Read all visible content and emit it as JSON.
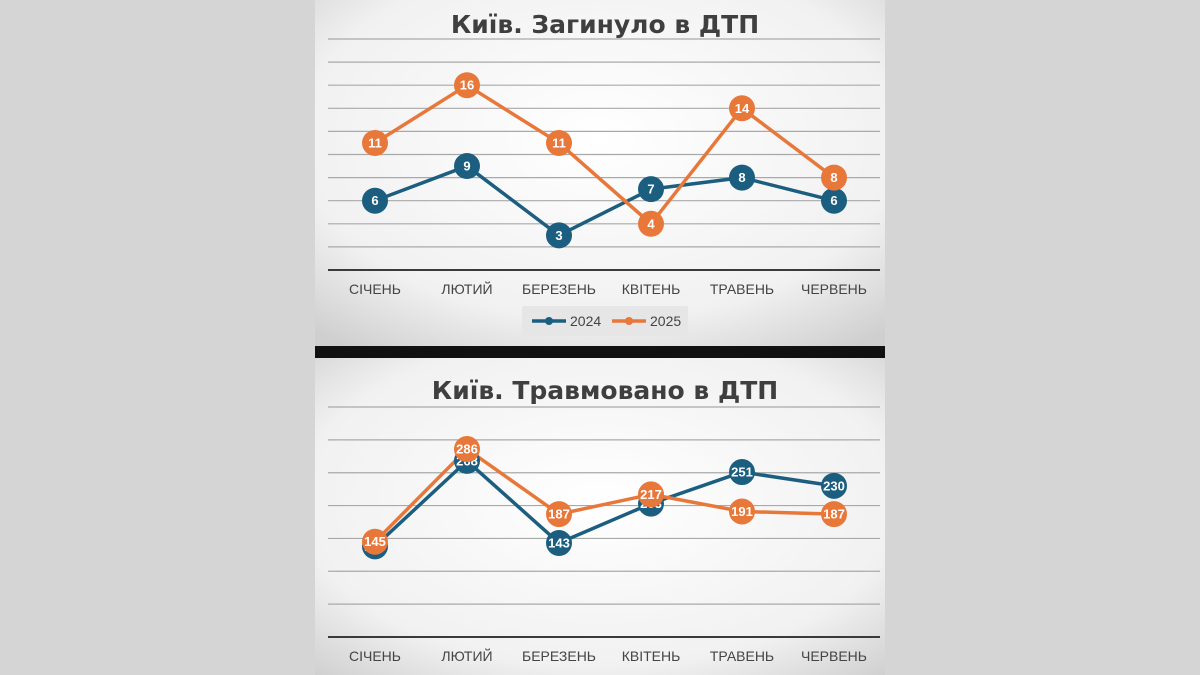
{
  "colors": {
    "series_2024": "#1b5e80",
    "series_2025": "#e8773a",
    "page_background": "#d5d5d5",
    "divider": "#111111"
  },
  "chart_data": [
    {
      "type": "line",
      "title": "Київ. Загинуло в ДТП",
      "xlabel": "",
      "ylabel": "",
      "categories": [
        "СІЧЕНЬ",
        "ЛЮТИЙ",
        "БЕРЕЗЕНЬ",
        "КВІТЕНЬ",
        "ТРАВЕНЬ",
        "ЧЕРВЕНЬ"
      ],
      "series": [
        {
          "name": "2024",
          "color": "#1b5e80",
          "values": [
            6,
            9,
            3,
            7,
            8,
            6
          ]
        },
        {
          "name": "2025",
          "color": "#e8773a",
          "values": [
            11,
            16,
            11,
            4,
            14,
            8
          ]
        }
      ],
      "ylim": [
        0,
        20
      ],
      "grid": true,
      "legend": "bottom",
      "data_labels": true
    },
    {
      "type": "line",
      "title": "Київ. Травмовано в ДТП",
      "xlabel": "",
      "ylabel": "",
      "categories": [
        "СІЧЕНЬ",
        "ЛЮТИЙ",
        "БЕРЕЗЕНЬ",
        "КВІТЕНЬ",
        "ТРАВЕНЬ",
        "ЧЕРВЕНЬ"
      ],
      "series": [
        {
          "name": "2024",
          "color": "#1b5e80",
          "values": [
            138,
            268,
            143,
            203,
            251,
            230
          ]
        },
        {
          "name": "2025",
          "color": "#e8773a",
          "values": [
            145,
            286,
            187,
            217,
            191,
            187
          ]
        }
      ],
      "ylim": [
        0,
        350
      ],
      "grid": true,
      "legend": "none",
      "data_labels": true
    }
  ]
}
